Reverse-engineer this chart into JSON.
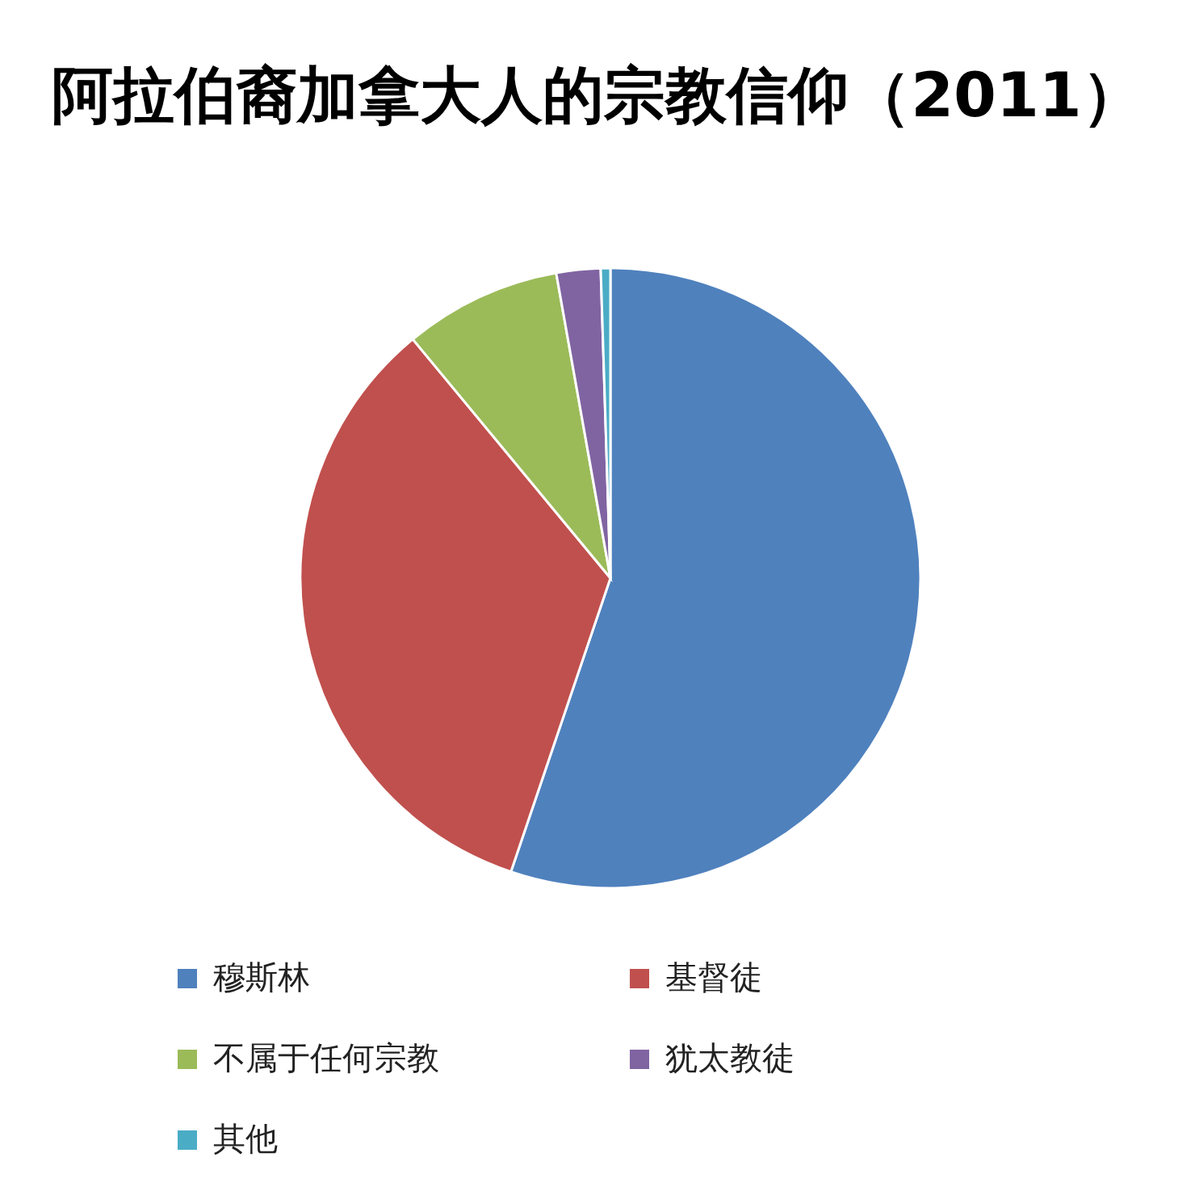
{
  "chart_data": {
    "type": "pie",
    "title": "阿拉伯裔加拿大人的宗教信仰（2011）",
    "categories": [
      "穆斯林",
      "基督徒",
      "不属于任何宗教",
      "犹太教徒",
      "其他"
    ],
    "values": [
      55.2,
      33.8,
      8.2,
      2.3,
      0.5
    ],
    "colors": [
      "#4f81bd",
      "#c0504d",
      "#9bbb59",
      "#8064a2",
      "#4bacc6"
    ],
    "legend": "bottom"
  }
}
